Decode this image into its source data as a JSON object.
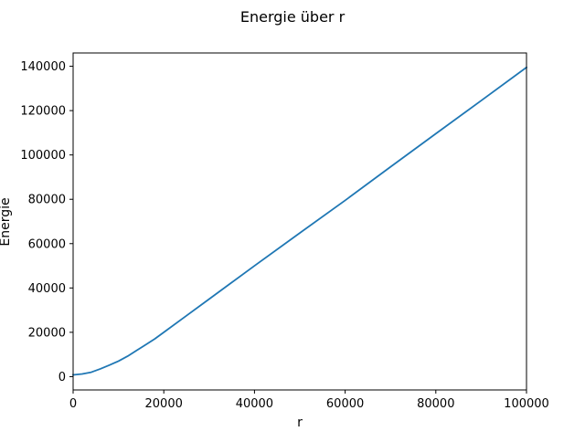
{
  "chart_data": {
    "type": "line",
    "title": "Energie über r",
    "xlabel": "r",
    "ylabel": "Energie",
    "xlim": [
      0,
      100000
    ],
    "ylim": [
      -6000,
      146000
    ],
    "xticks": [
      0,
      20000,
      40000,
      60000,
      80000,
      100000
    ],
    "yticks": [
      0,
      20000,
      40000,
      60000,
      80000,
      100000,
      120000,
      140000
    ],
    "grid": false,
    "line_color": "#1f77b4",
    "series": [
      {
        "x": [
          0,
          2000,
          4000,
          6000,
          8000,
          10000,
          12000,
          14000,
          16000,
          18000,
          20000,
          25000,
          30000,
          35000,
          40000,
          50000,
          60000,
          70000,
          80000,
          90000,
          100000
        ],
        "values": [
          800,
          1200,
          2000,
          3500,
          5200,
          7000,
          9200,
          11800,
          14400,
          17000,
          20000,
          27500,
          35000,
          42500,
          50000,
          64800,
          79500,
          94600,
          109600,
          124500,
          139500
        ]
      }
    ]
  }
}
